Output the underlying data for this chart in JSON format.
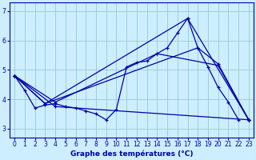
{
  "xlabel": "Graphe des températures (°C)",
  "bg_color": "#cceeff",
  "line_color": "#0000aa",
  "grid_color": "#99cccc",
  "xlim": [
    -0.5,
    23.5
  ],
  "ylim": [
    2.7,
    7.3
  ],
  "yticks": [
    3,
    4,
    5,
    6,
    7
  ],
  "xticks": [
    0,
    1,
    2,
    3,
    4,
    5,
    6,
    7,
    8,
    9,
    10,
    11,
    12,
    13,
    14,
    15,
    16,
    17,
    18,
    19,
    20,
    21,
    22,
    23
  ],
  "lines": [
    {
      "x": [
        0,
        1,
        2,
        3,
        4,
        5,
        6,
        7,
        8,
        9,
        10,
        11,
        12,
        13,
        14,
        15,
        16,
        17,
        18,
        19,
        20,
        21,
        22,
        23
      ],
      "y": [
        4.8,
        4.3,
        3.7,
        3.8,
        3.85,
        3.75,
        3.7,
        3.6,
        3.5,
        3.3,
        3.65,
        5.1,
        5.25,
        5.3,
        5.55,
        5.75,
        6.25,
        6.75,
        5.75,
        5.1,
        4.4,
        3.9,
        3.3,
        null
      ]
    },
    {
      "x": [
        0,
        3,
        17,
        23
      ],
      "y": [
        4.8,
        3.85,
        6.75,
        3.3
      ]
    },
    {
      "x": [
        0,
        3,
        18,
        20,
        23
      ],
      "y": [
        4.8,
        3.85,
        5.75,
        5.2,
        3.3
      ]
    },
    {
      "x": [
        0,
        4,
        14,
        20,
        23
      ],
      "y": [
        4.8,
        3.9,
        5.55,
        5.15,
        3.3
      ]
    },
    {
      "x": [
        0,
        4,
        23
      ],
      "y": [
        4.8,
        3.75,
        3.3
      ]
    }
  ]
}
